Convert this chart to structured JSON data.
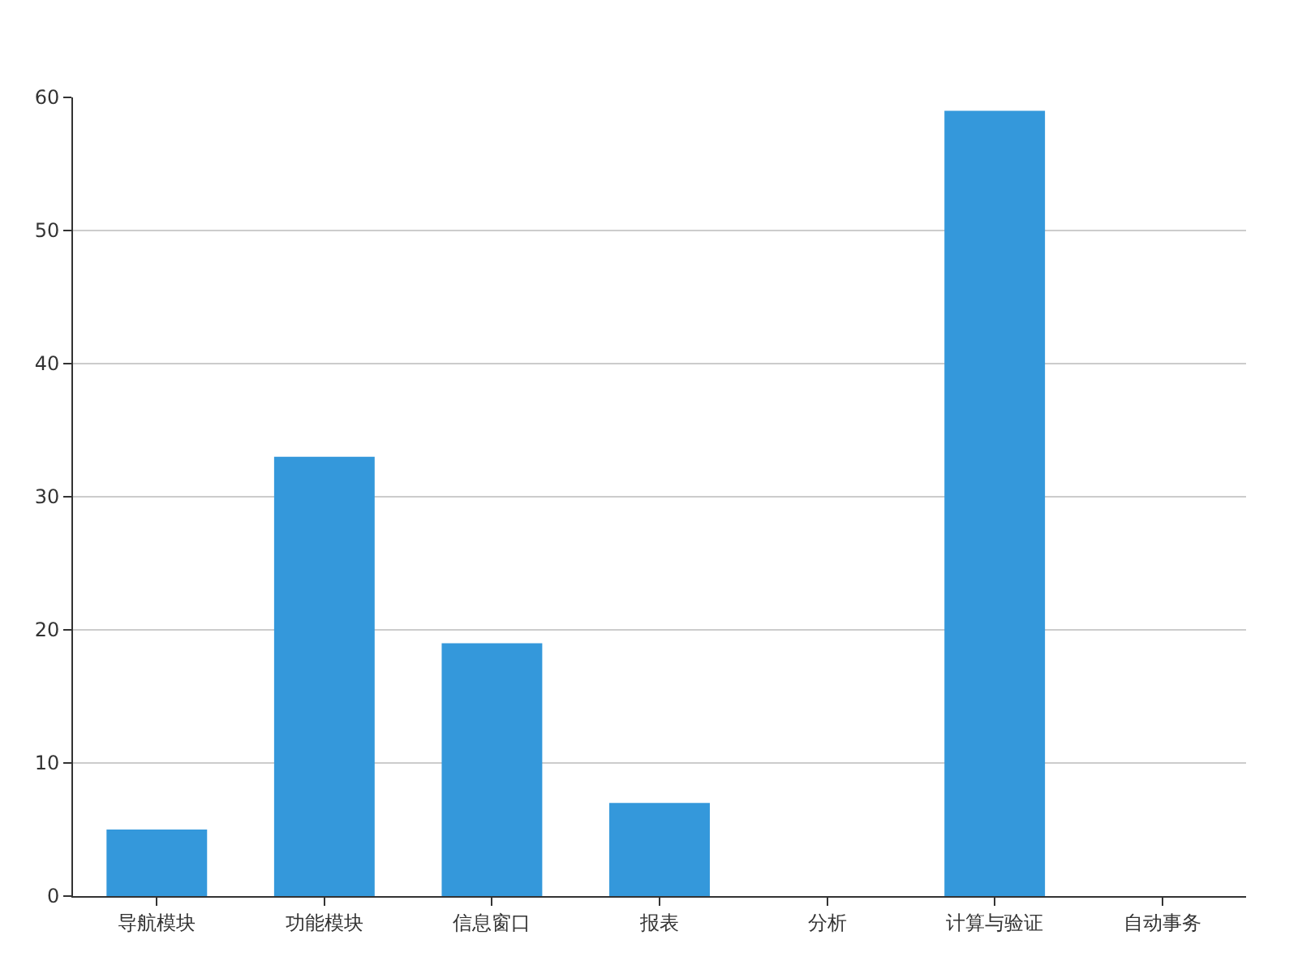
{
  "chart_data": {
    "type": "bar",
    "categories": [
      "导航模块",
      "功能模块",
      "信息窗口",
      "报表",
      "分析",
      "计算与验证",
      "自动事务"
    ],
    "values": [
      5,
      33,
      19,
      7,
      0,
      59,
      0
    ],
    "color": "#3498db",
    "ylim": [
      0,
      60
    ],
    "yticks": [
      0,
      10,
      20,
      30,
      40,
      50,
      60
    ],
    "grid": "y"
  }
}
